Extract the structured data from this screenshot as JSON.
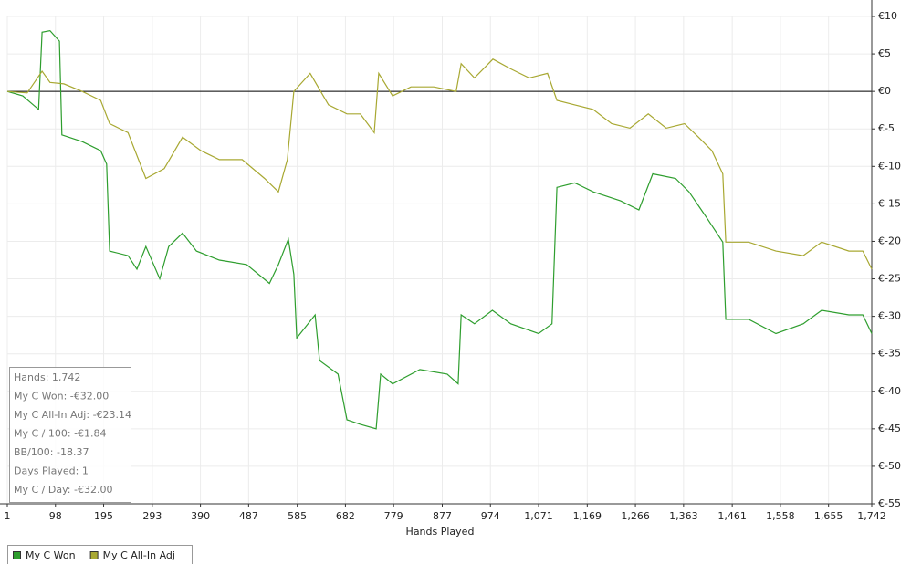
{
  "chart_data": {
    "type": "line",
    "xlabel": "Hands Played",
    "xlim": [
      1,
      1742
    ],
    "ylim": [
      -55,
      10
    ],
    "grid": true,
    "xticks": [
      1,
      98,
      195,
      293,
      390,
      487,
      585,
      682,
      779,
      877,
      974,
      {
        "value": 1071,
        "label": "1,071"
      },
      {
        "value": 1169,
        "label": "1,169"
      },
      {
        "value": 1266,
        "label": "1,266"
      },
      {
        "value": 1363,
        "label": "1,363"
      },
      {
        "value": 1461,
        "label": "1,461"
      },
      {
        "value": 1558,
        "label": "1,558"
      },
      {
        "value": 1655,
        "label": "1,655"
      },
      {
        "value": 1742,
        "label": "1,742"
      }
    ],
    "yticks": [
      {
        "value": 10,
        "label": "€10"
      },
      {
        "value": 5,
        "label": "€5"
      },
      {
        "value": 0,
        "label": "€0"
      },
      {
        "value": -5,
        "label": "€-5"
      },
      {
        "value": -10,
        "label": "€-10"
      },
      {
        "value": -15,
        "label": "€-15"
      },
      {
        "value": -20,
        "label": "€-20"
      },
      {
        "value": -25,
        "label": "€-25"
      },
      {
        "value": -30,
        "label": "€-30"
      },
      {
        "value": -35,
        "label": "€-35"
      },
      {
        "value": -40,
        "label": "€-40"
      },
      {
        "value": -45,
        "label": "€-45"
      },
      {
        "value": -50,
        "label": "€-50"
      },
      {
        "value": -55,
        "label": "€-55"
      }
    ],
    "series": [
      {
        "name": "My C Won",
        "color": "#2e9e2e",
        "x": [
          1,
          32,
          64,
          71,
          87,
          106,
          111,
          152,
          189,
          201,
          207,
          244,
          262,
          280,
          308,
          326,
          354,
          382,
          428,
          483,
          529,
          547,
          567,
          578,
          584,
          621,
          630,
          667,
          685,
          712,
          744,
          753,
          777,
          832,
          887,
          909,
          915,
          942,
          978,
          1015,
          1071,
          1098,
          1108,
          1144,
          1181,
          1236,
          1273,
          1301,
          1347,
          1374,
          1411,
          1442,
          1448,
          1494,
          1549,
          1604,
          1641,
          1696,
          1724,
          1742
        ],
        "values": [
          0,
          -0.6,
          -2.4,
          7.9,
          8.1,
          6.7,
          -5.8,
          -6.7,
          -7.9,
          -9.7,
          -21.3,
          -21.9,
          -23.7,
          -20.7,
          -25,
          -20.7,
          -18.9,
          -21.3,
          -22.5,
          -23.1,
          -25.6,
          -23.1,
          -19.7,
          -24.4,
          -32.9,
          -29.8,
          -35.9,
          -37.7,
          -43.8,
          -44.4,
          -45,
          -37.7,
          -39,
          -37.1,
          -37.7,
          -39,
          -29.8,
          -31,
          -29.2,
          -31,
          -32.3,
          -31,
          -12.8,
          -12.2,
          -13.4,
          -14.6,
          -15.8,
          -11,
          -11.6,
          -13.4,
          -17,
          -20.1,
          -30.4,
          -30.4,
          -32.3,
          -31,
          -29.2,
          -29.8,
          -29.8,
          -32.3
        ]
      },
      {
        "name": "My C All-In Adj",
        "color": "#a8a832",
        "x": [
          1,
          41,
          71,
          87,
          115,
          152,
          189,
          207,
          244,
          280,
          317,
          354,
          391,
          428,
          474,
          519,
          547,
          565,
          578,
          611,
          648,
          685,
          712,
          740,
          749,
          777,
          814,
          860,
          905,
          915,
          942,
          979,
          1015,
          1052,
          1089,
          1108,
          1144,
          1181,
          1218,
          1255,
          1292,
          1328,
          1365,
          1393,
          1420,
          1442,
          1448,
          1494,
          1549,
          1604,
          1641,
          1696,
          1724,
          1742
        ],
        "values": [
          0,
          -0.2,
          2.7,
          1.2,
          1,
          0,
          -1.2,
          -4.3,
          -5.5,
          -11.6,
          -10.3,
          -6.1,
          -7.9,
          -9.1,
          -9.1,
          -11.6,
          -13.4,
          -9.1,
          0,
          2.4,
          -1.8,
          -3,
          -3,
          -5.5,
          2.4,
          -0.6,
          0.6,
          0.6,
          0,
          3.7,
          1.8,
          4.3,
          3,
          1.8,
          2.4,
          -1.2,
          -1.8,
          -2.4,
          -4.3,
          -4.9,
          -3,
          -4.9,
          -4.3,
          -6.1,
          -7.9,
          -11,
          -20.1,
          -20.1,
          -21.3,
          -21.9,
          -20.1,
          -21.3,
          -21.3,
          -23.7
        ]
      }
    ],
    "stats": [
      "Hands: 1,742",
      "My C Won: -€32.00",
      "My C All-In Adj: -€23.14",
      "My C / 100: -€1.84",
      "BB/100: -18.37",
      "Days Played: 1",
      "My C / Day: -€32.00"
    ]
  }
}
